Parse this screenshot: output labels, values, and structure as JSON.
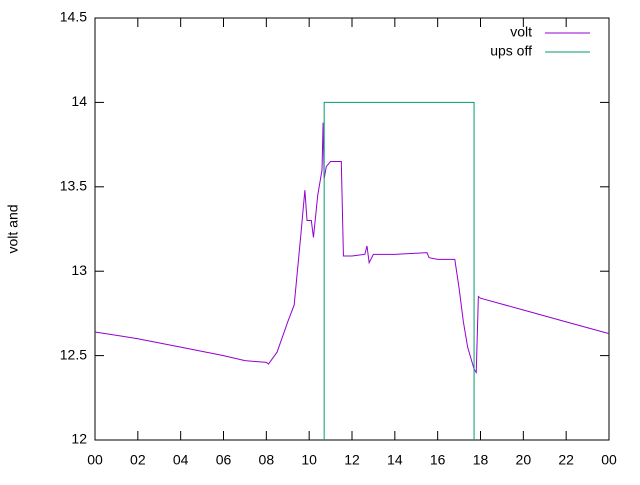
{
  "chart_data": {
    "type": "line",
    "ylabel": "volt and",
    "xlim": [
      0,
      24
    ],
    "xticks": [
      {
        "value": 0,
        "label": "00"
      },
      {
        "value": 2,
        "label": "02"
      },
      {
        "value": 4,
        "label": "04"
      },
      {
        "value": 6,
        "label": "06"
      },
      {
        "value": 8,
        "label": "08"
      },
      10,
      12,
      14,
      16,
      18,
      20,
      22,
      {
        "value": 24,
        "label": "00"
      }
    ],
    "ylim": [
      12,
      14.5
    ],
    "yticks": [
      12,
      12.5,
      13,
      13.5,
      14,
      14.5
    ],
    "legend": "top-right",
    "series": [
      {
        "name": "volt",
        "color": "#9400d3",
        "x": [
          0,
          2,
          4,
          6,
          7,
          8,
          8.1,
          8.5,
          9,
          9.3,
          9.6,
          9.8,
          9.9,
          10.1,
          10.2,
          10.4,
          10.6,
          10.65,
          10.7,
          10.8,
          11.0,
          11.5,
          11.6,
          12.0,
          12.6,
          12.7,
          12.8,
          13.0,
          14.0,
          15.5,
          15.6,
          16.0,
          16.8,
          17.0,
          17.2,
          17.4,
          17.7,
          17.8,
          17.85,
          17.9,
          18,
          20,
          22,
          24
        ],
        "values": [
          12.64,
          12.6,
          12.55,
          12.5,
          12.47,
          12.46,
          12.45,
          12.52,
          12.7,
          12.8,
          13.2,
          13.48,
          13.3,
          13.3,
          13.2,
          13.45,
          13.6,
          13.88,
          13.55,
          13.62,
          13.65,
          13.65,
          13.09,
          13.09,
          13.1,
          13.15,
          13.05,
          13.1,
          13.1,
          13.11,
          13.08,
          13.07,
          13.07,
          12.9,
          12.7,
          12.55,
          12.42,
          12.4,
          12.62,
          12.85,
          12.84,
          12.77,
          12.7,
          12.63
        ]
      },
      {
        "name": "ups off",
        "color": "#009e73",
        "x": [
          10.7,
          10.7,
          17.7,
          17.7
        ],
        "values": [
          12,
          14,
          14,
          12
        ]
      }
    ]
  }
}
